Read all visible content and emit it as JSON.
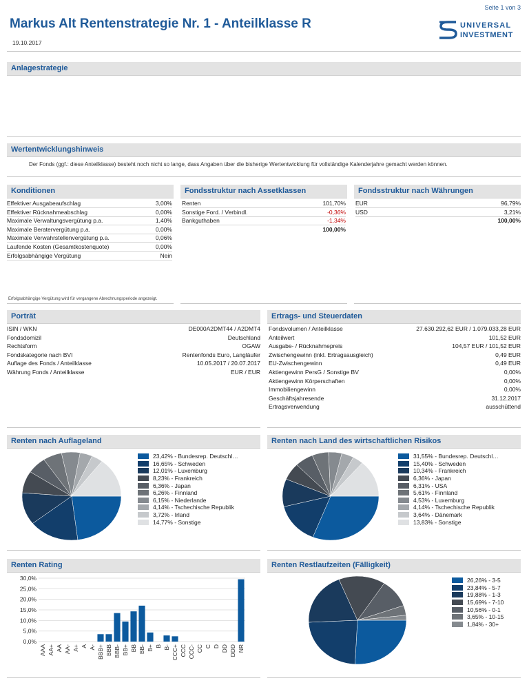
{
  "page_number": "Seite 1 von 3",
  "title": "Markus Alt Rentenstrategie Nr. 1 - Anteilklasse R",
  "date": "19.10.2017",
  "logo": {
    "line1": "UNIVERSAL",
    "line2": "INVESTMENT"
  },
  "anlagestrategie": {
    "heading": "Anlagestrategie"
  },
  "wertentwicklung": {
    "heading": "Wertentwicklungshinweis",
    "text": "Der Fonds (ggf.: diese Anteilklasse) besteht noch nicht so lange, dass Angaben über die bisherige Wertentwicklung für vollständige Kalenderjahre gemacht werden können."
  },
  "konditionen": {
    "heading": "Konditionen",
    "rows": [
      {
        "label": "Effektiver Ausgabeaufschlag",
        "value": "3,00%"
      },
      {
        "label": "Effektiver Rücknahmeabschlag",
        "value": "0,00%"
      },
      {
        "label": "Maximale Verwaltungsvergütung p.a.",
        "value": "1,40%"
      },
      {
        "label": "Maximale Beratervergütung p.a.",
        "value": "0,00%"
      },
      {
        "label": "Maximale Verwahrstellenvergütung p.a.",
        "value": "0,06%"
      },
      {
        "label": "Laufende Kosten (Gesamtkostenquote)",
        "value": "0,00%"
      },
      {
        "label": "Erfolgsabhängige Vergütung",
        "value": "Nein"
      }
    ],
    "note": "Erfolgsabhängige Vergütung wird für vergangene Abrechnungsperiode angezeigt."
  },
  "assetklassen": {
    "heading": "Fondsstruktur nach Assetklassen",
    "rows": [
      {
        "label": "Renten",
        "value": "101,70%"
      },
      {
        "label": "Sonstige Ford. / Verbindl.",
        "value": "-0,36%"
      },
      {
        "label": "Bankguthaben",
        "value": "-1,34%"
      }
    ],
    "total": "100,00%"
  },
  "waehrungen": {
    "heading": "Fondsstruktur nach Währungen",
    "rows": [
      {
        "label": "EUR",
        "value": "96,79%"
      },
      {
        "label": "USD",
        "value": "3,21%"
      }
    ],
    "total": "100,00%"
  },
  "portraet": {
    "heading": "Porträt",
    "rows": [
      {
        "label": "ISIN / WKN",
        "value": "DE000A2DMT44 / A2DMT4"
      },
      {
        "label": "Fondsdomizil",
        "value": "Deutschland"
      },
      {
        "label": "Rechtsform",
        "value": "OGAW"
      },
      {
        "label": "Fondskategorie nach BVI",
        "value": "Rentenfonds Euro, Langläufer"
      },
      {
        "label": "Auflage des Fonds / Anteilklasse",
        "value": "10.05.2017 / 20.07.2017"
      },
      {
        "label": "Währung Fonds / Anteilklasse",
        "value": "EUR / EUR"
      }
    ]
  },
  "ertrag": {
    "heading": "Ertrags- und Steuerdaten",
    "rows": [
      {
        "label": "Fondsvolumen / Anteilklasse",
        "value": "27.630.292,62 EUR / 1.079.033,28 EUR"
      },
      {
        "label": "Anteilwert",
        "value": "101,52 EUR"
      },
      {
        "label": "Ausgabe- / Rücknahmepreis",
        "value": "104,57 EUR / 101,52 EUR"
      },
      {
        "label": "Zwischengewinn (inkl. Ertragsausgleich)",
        "value": "0,49 EUR"
      },
      {
        "label": "EU-Zwischengewinn",
        "value": "0,49 EUR"
      },
      {
        "label": "Aktiengewinn PersG / Sonstige BV",
        "value": "0,00%"
      },
      {
        "label": "Aktiengewinn Körperschaften",
        "value": "0,00%"
      },
      {
        "label": "Immobiliengewinn",
        "value": "0,00%"
      },
      {
        "label": "Geschäftsjahresende",
        "value": "31.12.2017"
      },
      {
        "label": "Ertragsverwendung",
        "value": "ausschüttend"
      }
    ]
  },
  "colors": {
    "accent": "#1f5a99",
    "negative": "#c00000",
    "section_bg": "#e3e3e3"
  },
  "chart_data": [
    {
      "type": "pie",
      "title": "Renten nach Auflageland",
      "labels": [
        "23,42%  -  Bundesrep. Deutschl…",
        "16,65% - Schweden",
        "12,01% - Luxemburg",
        "8,23% - Frankreich",
        "6,36% - Japan",
        "6,26% - Finnland",
        "6,15% - Niederlande",
        "4,14% - Tschechische Republik",
        "3,72% - Irland",
        "14,77% - Sonstige"
      ],
      "values": [
        23.42,
        16.65,
        12.01,
        8.23,
        6.36,
        6.26,
        6.15,
        4.14,
        3.72,
        14.77
      ],
      "colors": [
        "#0c5a9e",
        "#123e6b",
        "#1a3a5c",
        "#444a52",
        "#585e66",
        "#6e7378",
        "#858a8f",
        "#a4a8ac",
        "#c6c9cc",
        "#dfe1e3"
      ]
    },
    {
      "type": "pie",
      "title": "Renten nach Land des wirtschaftlichen Risikos",
      "labels": [
        "31,55%  -  Bundesrep. Deutschl…",
        "15,40% - Schweden",
        "10,34% - Frankreich",
        "6,36% - Japan",
        "6,31% - USA",
        "5,61% - Finnland",
        "4,53% - Luxemburg",
        "4,14% - Tschechische Republik",
        "3,64% - Dänemark",
        "13,83% - Sonstige"
      ],
      "values": [
        31.55,
        15.4,
        10.34,
        6.36,
        6.31,
        5.61,
        4.53,
        4.14,
        3.64,
        13.83
      ],
      "colors": [
        "#0c5a9e",
        "#123e6b",
        "#1a3a5c",
        "#444a52",
        "#585e66",
        "#6e7378",
        "#858a8f",
        "#a4a8ac",
        "#c6c9cc",
        "#dfe1e3"
      ]
    },
    {
      "type": "bar",
      "title": "Renten Rating",
      "categories": [
        "AAA",
        "AA+",
        "AA",
        "AA-",
        "A+",
        "A",
        "A-",
        "BBB+",
        "BBB",
        "BBB-",
        "BB+",
        "BB",
        "BB-",
        "B+",
        "B",
        "B-",
        "CCC+",
        "CCC",
        "CCC-",
        "CC",
        "C",
        "D",
        "DD",
        "DDD",
        "NR"
      ],
      "values": [
        0,
        0,
        0,
        0,
        0,
        0,
        0,
        3.5,
        3.5,
        13.5,
        9.5,
        14.3,
        17.0,
        4.3,
        0,
        2.9,
        2.5,
        0,
        0,
        0,
        0,
        0,
        0,
        0,
        29.5
      ],
      "yticks": [
        "0,0%",
        "5,0%",
        "10,0%",
        "15,0%",
        "20,0%",
        "25,0%",
        "30,0%"
      ],
      "ylim": [
        0,
        30
      ],
      "color": "#0c5a9e",
      "grid": true
    },
    {
      "type": "pie",
      "title": "Renten Restlaufzeiten (Fälligkeit)",
      "labels": [
        "26,26% - 3-5",
        "23,84% - 5-7",
        "19,88% - 1-3",
        "15,69% - 7-10",
        "10,56% - 0-1",
        "3,65% - 10-15",
        "1,84% - 30+"
      ],
      "values": [
        26.26,
        23.84,
        19.88,
        15.69,
        10.56,
        3.65,
        1.84
      ],
      "colors": [
        "#0c5a9e",
        "#123e6b",
        "#1a3a5c",
        "#444a52",
        "#585e66",
        "#6e7378",
        "#858a8f"
      ]
    }
  ]
}
